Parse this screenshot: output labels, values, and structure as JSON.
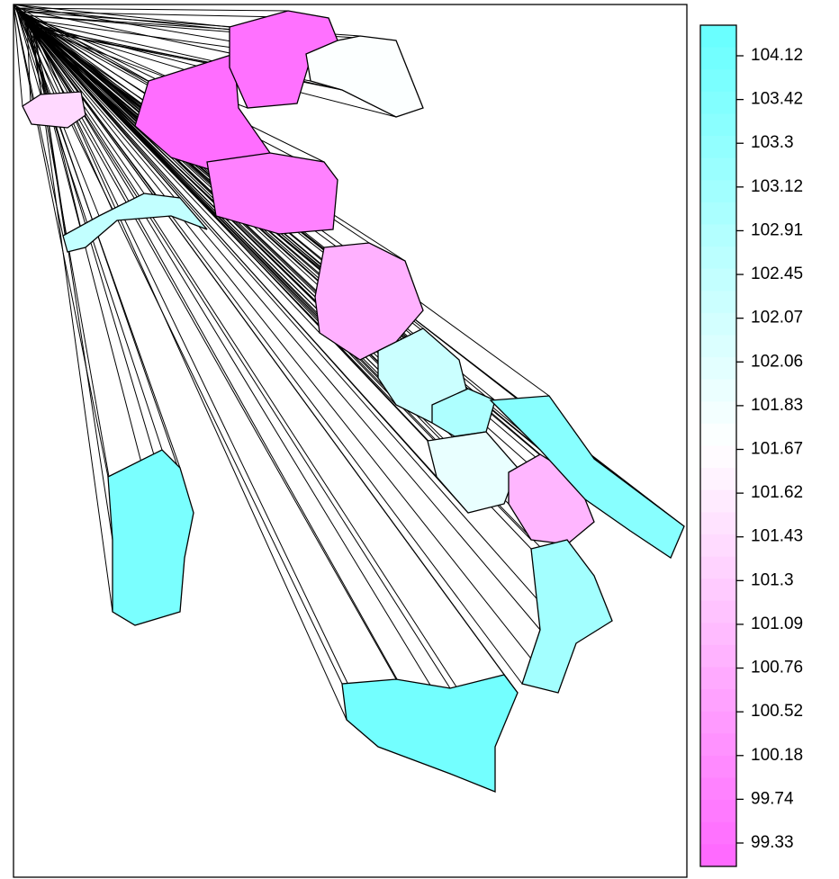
{
  "chart_data": {
    "type": "choropleth",
    "colors": [
      "#ff66ff",
      "#ffffff",
      "#66ffff"
    ],
    "colorbar_ticks": [
      104.12,
      103.42,
      103.3,
      103.12,
      102.91,
      102.45,
      102.07,
      102.06,
      101.83,
      101.67,
      101.62,
      101.43,
      101.3,
      101.09,
      100.76,
      100.52,
      100.18,
      99.74,
      99.33
    ],
    "region_values": [
      99.5,
      101.4,
      99.6,
      101.7,
      102.3,
      100.0,
      100.9,
      102.1,
      102.8,
      101.9,
      101.0,
      103.3,
      103.0,
      103.6,
      103.4
    ]
  }
}
